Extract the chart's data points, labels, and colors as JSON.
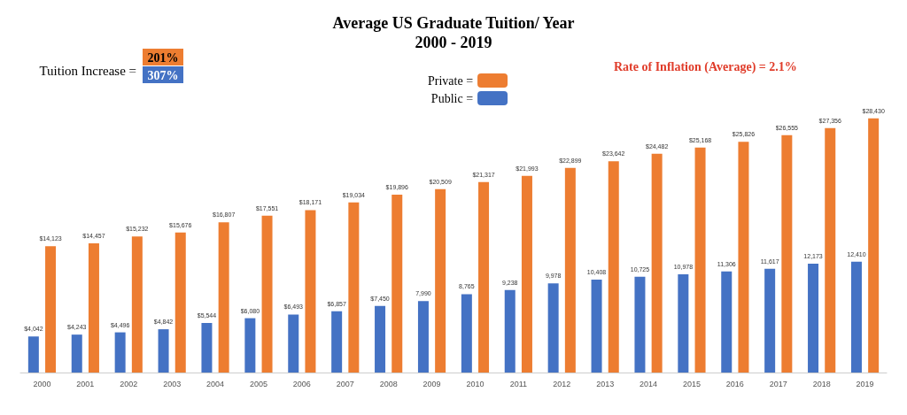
{
  "chart_data": {
    "type": "bar",
    "title": "Average US Graduate Tuition/ Year",
    "subtitle": "2000 - 2019",
    "categories": [
      "2000",
      "2001",
      "2002",
      "2003",
      "2004",
      "2005",
      "2006",
      "2007",
      "2008",
      "2009",
      "2010",
      "2011",
      "2012",
      "2013",
      "2014",
      "2015",
      "2016",
      "2017",
      "2018",
      "2019"
    ],
    "series": [
      {
        "name": "Public =",
        "color": "#4472c4",
        "values": [
          4042,
          4243,
          4496,
          4842,
          5544,
          6080,
          6493,
          6857,
          7450,
          7990,
          8765,
          9238,
          9978,
          10408,
          10725,
          10978,
          11306,
          11617,
          12173,
          12410
        ],
        "value_labels": [
          "$4,042",
          "$4,243",
          "$4,496",
          "$4,842",
          "$5,544",
          "$6,080",
          "$6,493",
          "$6,857",
          "$7,450",
          "7,990",
          "8,765",
          "9,238",
          "9,978",
          "10,408",
          "10,725",
          "10,978",
          "11,306",
          "11,617",
          "12,173",
          "12,410"
        ]
      },
      {
        "name": "Private =",
        "color": "#ed7d31",
        "values": [
          14123,
          14457,
          15232,
          15676,
          16807,
          17551,
          18171,
          19034,
          19896,
          20509,
          21317,
          21993,
          22899,
          23642,
          24482,
          25168,
          25826,
          26555,
          27356,
          28430
        ],
        "value_labels": [
          "$14,123",
          "$14,457",
          "$15,232",
          "$15,676",
          "$16,807",
          "$17,551",
          "$18,171",
          "$19,034",
          "$19,896",
          "$20,509",
          "$21,317",
          "$21,993",
          "$22,899",
          "$23,642",
          "$24,482",
          "$25,168",
          "$25,826",
          "$26,555",
          "$27,356",
          "$28,430"
        ]
      }
    ],
    "annotations": [
      "Tuition Increase =",
      "201%",
      "307%",
      "Rate of Inflation (Average) = 2.1%"
    ],
    "legend": "top"
  }
}
